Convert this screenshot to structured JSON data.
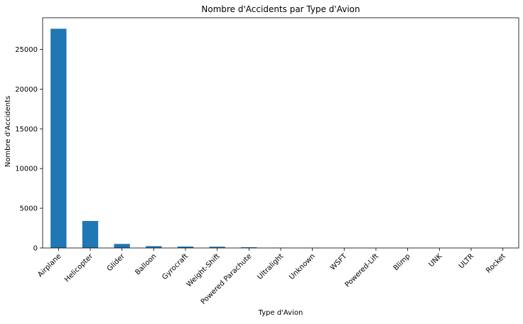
{
  "chart_data": {
    "type": "bar",
    "title": "Nombre d'Accidents par Type d'Avion",
    "xlabel": "Type d'Avion",
    "ylabel": "Nombre d'Accidents",
    "categories": [
      "Airplane",
      "Helicopter",
      "Glider",
      "Balloon",
      "Gyrocraft",
      "Weight-Shift",
      "Powered Parachute",
      "Ultralight",
      "Unknown",
      "WSFT",
      "Powered-Lift",
      "Blimp",
      "UNK",
      "ULTR",
      "Rocket"
    ],
    "values": [
      27600,
      3400,
      510,
      230,
      180,
      160,
      90,
      30,
      14,
      9,
      5,
      4,
      2,
      1,
      1
    ],
    "ylim": [
      0,
      28980
    ],
    "yticks": [
      0,
      5000,
      10000,
      15000,
      20000,
      25000
    ],
    "ytick_labels": [
      "0",
      "5000",
      "10000",
      "15000",
      "20000",
      "25000"
    ],
    "grid": false,
    "bar_color": "#1f77b4"
  }
}
